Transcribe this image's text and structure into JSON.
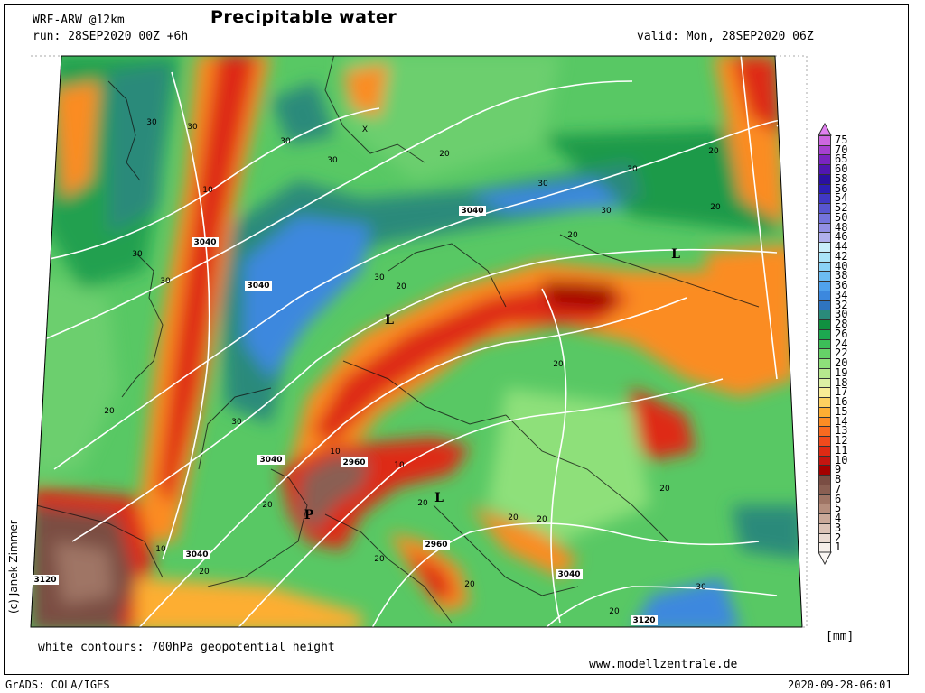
{
  "header": {
    "title": "Precipitable water",
    "model": "WRF-ARW @12km",
    "run": "run: 28SEP2020 00Z +6h",
    "valid": "valid: Mon, 28SEP2020 06Z"
  },
  "footer": {
    "note": "white contours: 700hPa geopotential height",
    "website": "www.modellzentrale.de",
    "software": "GrADS: COLA/IGES",
    "timestamp": "2020-09-28-06:01",
    "copyright": "(c) Janek Zimmer"
  },
  "legend": {
    "unit": "[mm]",
    "levels": [
      "1",
      "2",
      "3",
      "4",
      "5",
      "6",
      "7",
      "8",
      "9",
      "10",
      "11",
      "12",
      "13",
      "14",
      "15",
      "16",
      "17",
      "18",
      "19",
      "20",
      "22",
      "24",
      "26",
      "28",
      "30",
      "32",
      "34",
      "36",
      "38",
      "40",
      "42",
      "44",
      "46",
      "48",
      "50",
      "52",
      "54",
      "56",
      "58",
      "60",
      "65",
      "70",
      "75"
    ],
    "colors": [
      "#f6efea",
      "#eadbd2",
      "#dbc3b6",
      "#c9a999",
      "#b58e7d",
      "#9f7565",
      "#8a5f52",
      "#7a4d43",
      "#a40000",
      "#c41510",
      "#de2a14",
      "#f04a1c",
      "#f86a20",
      "#fb8c24",
      "#fdae33",
      "#fdd060",
      "#f8ec96",
      "#dcf0a4",
      "#b6e88e",
      "#8ee07a",
      "#66d268",
      "#3cbe58",
      "#1ca850",
      "#109040",
      "#2a8a7a",
      "#2f74c0",
      "#3c88de",
      "#50a2ec",
      "#6cbcf2",
      "#8ad2f6",
      "#aae4f8",
      "#c8eefa",
      "#b0b0ec",
      "#9290e4",
      "#7474dc",
      "#5856d0",
      "#4038c4",
      "#2c1eb4",
      "#2a10a0",
      "#5016b0",
      "#7a24c0",
      "#a640d0",
      "#cc66e0"
    ]
  },
  "map": {
    "contour_labels": [
      "30",
      "30",
      "30",
      "30",
      "30",
      "30",
      "30",
      "30",
      "30",
      "30",
      "30",
      "30",
      "20",
      "20",
      "20",
      "20",
      "20",
      "20",
      "20",
      "20",
      "20",
      "20",
      "20",
      "20",
      "20",
      "20",
      "20",
      "20",
      "10",
      "10",
      "10",
      "10",
      "3040",
      "3040",
      "3040",
      "3040",
      "3040",
      "3040",
      "2960",
      "2960",
      "3120",
      "3120",
      "X"
    ],
    "pressure_centers": [
      "L",
      "L",
      "L",
      "L",
      "P"
    ]
  }
}
